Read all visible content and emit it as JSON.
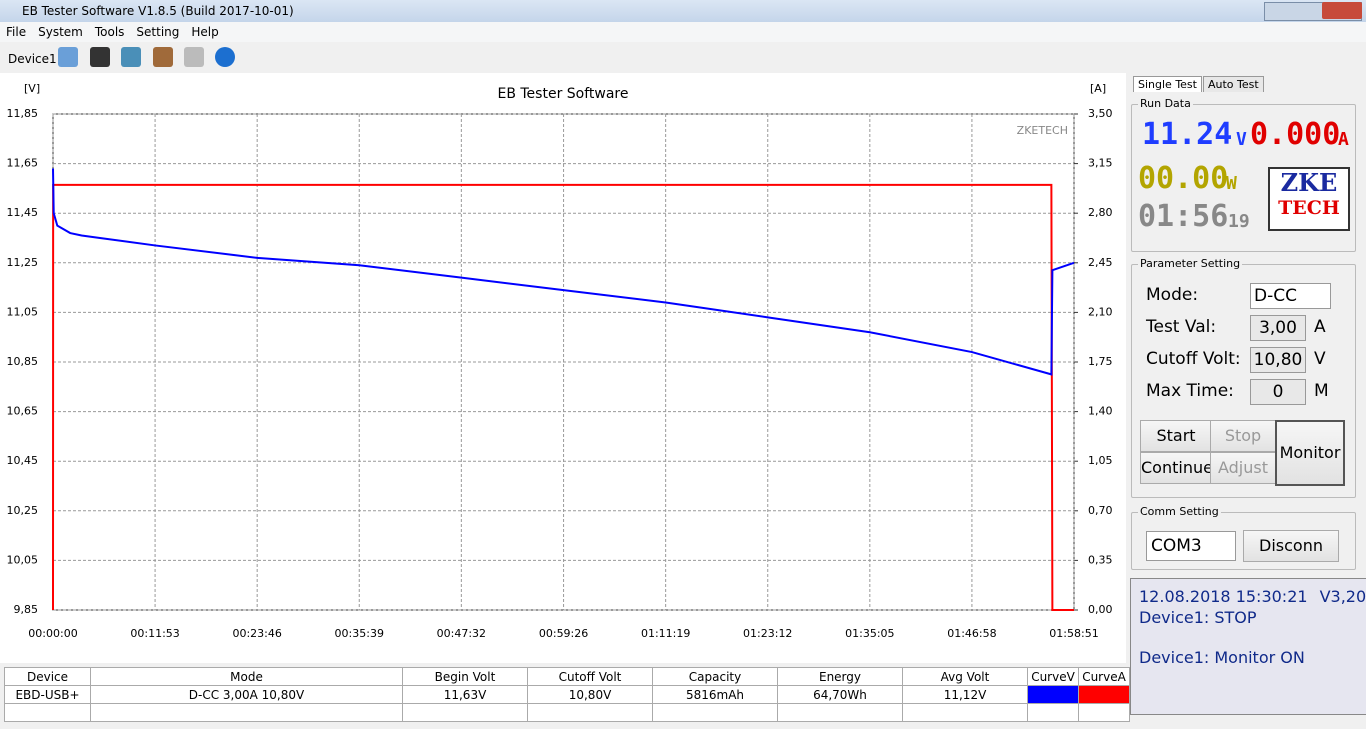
{
  "window": {
    "title": "EB Tester Software V1.8.5 (Build 2017-10-01)"
  },
  "menu": [
    "File",
    "System",
    "Tools",
    "Setting",
    "Help"
  ],
  "toolbar": {
    "device": "Device1"
  },
  "chart_data": {
    "type": "line",
    "title": "EB Tester Software",
    "watermark": "ZKETECH",
    "y_label": "[V]",
    "y2_label": "[A]",
    "xlim": [
      0,
      7131
    ],
    "xticks": [
      {
        "value": 0,
        "label": "00:00:00"
      },
      {
        "value": 713,
        "label": "00:11:53"
      },
      {
        "value": 1426,
        "label": "00:23:46"
      },
      {
        "value": 2139,
        "label": "00:35:39"
      },
      {
        "value": 2852,
        "label": "00:47:32"
      },
      {
        "value": 3566,
        "label": "00:59:26"
      },
      {
        "value": 4279,
        "label": "01:11:19"
      },
      {
        "value": 4992,
        "label": "01:23:12"
      },
      {
        "value": 5705,
        "label": "01:35:05"
      },
      {
        "value": 6418,
        "label": "01:46:58"
      },
      {
        "value": 7131,
        "label": "01:58:51"
      }
    ],
    "ylim": [
      9.85,
      11.85
    ],
    "yticks": [
      {
        "value": 9.85,
        "label": "9,85"
      },
      {
        "value": 10.05,
        "label": "10,05"
      },
      {
        "value": 10.25,
        "label": "10,25"
      },
      {
        "value": 10.45,
        "label": "10,45"
      },
      {
        "value": 10.65,
        "label": "10,65"
      },
      {
        "value": 10.85,
        "label": "10,85"
      },
      {
        "value": 11.05,
        "label": "11,05"
      },
      {
        "value": 11.25,
        "label": "11,25"
      },
      {
        "value": 11.45,
        "label": "11,45"
      },
      {
        "value": 11.65,
        "label": "11,65"
      },
      {
        "value": 11.85,
        "label": "11,85"
      }
    ],
    "y2lim": [
      0,
      3.5
    ],
    "y2ticks": [
      {
        "value": 0,
        "label": "0,00"
      },
      {
        "value": 0.35,
        "label": "0,35"
      },
      {
        "value": 0.7,
        "label": "0,70"
      },
      {
        "value": 1.05,
        "label": "1,05"
      },
      {
        "value": 1.4,
        "label": "1,40"
      },
      {
        "value": 1.75,
        "label": "1,75"
      },
      {
        "value": 2.1,
        "label": "2,10"
      },
      {
        "value": 2.45,
        "label": "2,45"
      },
      {
        "value": 2.8,
        "label": "2,80"
      },
      {
        "value": 3.15,
        "label": "3,15"
      },
      {
        "value": 3.5,
        "label": "3,50"
      }
    ],
    "grid": true,
    "series": [
      {
        "name": "CurveV",
        "color": "#0000ff",
        "x": [
          0,
          5,
          30,
          120,
          200,
          328,
          713,
          1426,
          2139,
          2852,
          3566,
          4279,
          4992,
          5705,
          6418,
          6973,
          6980,
          7131
        ],
        "values": [
          11.63,
          11.45,
          11.4,
          11.37,
          11.36,
          11.35,
          11.32,
          11.27,
          11.24,
          11.19,
          11.14,
          11.09,
          11.03,
          10.97,
          10.89,
          10.8,
          11.22,
          11.25
        ]
      },
      {
        "name": "CurveA",
        "color": "#ff0000",
        "axis": "y2",
        "x": [
          0,
          1,
          6973,
          6980,
          7131
        ],
        "values": [
          0,
          3.0,
          3.0,
          0,
          0
        ]
      }
    ]
  },
  "panel": {
    "tabs": [
      "Single Test",
      "Auto Test"
    ],
    "run_data": {
      "title": "Run Data",
      "volt": "11.24",
      "volt_unit": "V",
      "amp": "0.000",
      "amp_unit": "A",
      "watt": "00.00",
      "watt_unit": "W",
      "time": "01:56",
      "time_sec": "19",
      "logo_top": "ZKE",
      "logo_bottom": "TECH"
    },
    "parameter": {
      "title": "Parameter Setting",
      "rows": [
        {
          "label": "Mode:",
          "value": "D-CC",
          "unit": ""
        },
        {
          "label": "Test Val:",
          "value": "3,00",
          "unit": "A"
        },
        {
          "label": "Cutoff Volt:",
          "value": "10,80",
          "unit": "V"
        },
        {
          "label": "Max Time:",
          "value": "0",
          "unit": "M"
        }
      ]
    },
    "buttons": [
      "Start",
      "Stop",
      "Continue",
      "Adjust",
      "Monitor"
    ],
    "comm": {
      "title": "Comm Setting",
      "port": "COM3",
      "button": "Disconn"
    },
    "status": {
      "datetime": "12.08.2018 15:30:21",
      "version": "V3,20",
      "lines": [
        "Device1: STOP",
        "Device1: Monitor ON"
      ]
    }
  },
  "table": {
    "headers": [
      "Device",
      "Mode",
      "Begin Volt",
      "Cutoff Volt",
      "Capacity",
      "Energy",
      "Avg Volt",
      "CurveV",
      "CurveA"
    ],
    "rows": [
      [
        "EBD-USB+",
        "D-CC  3,00A  10,80V",
        "11,63V",
        "10,80V",
        "5816mAh",
        "64,70Wh",
        "11,12V"
      ]
    ]
  }
}
